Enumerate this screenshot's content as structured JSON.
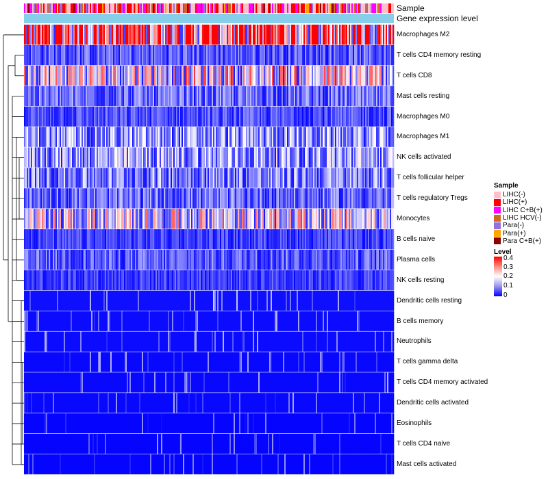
{
  "chart_data": {
    "type": "heatmap",
    "title": "",
    "annotation_tracks": [
      "Sample",
      "Gene expression level"
    ],
    "rows": [
      "Macrophages M2",
      "T cells CD4 memory resting",
      "T cells CD8",
      "Mast cells resting",
      "Macrophages M0",
      "Macrophages M1",
      "NK cells activated",
      "T cells follicular helper",
      "T cells regulatory  Tregs",
      "Monocytes",
      "B cells naive",
      "Plasma cells",
      "NK cells resting",
      "Dendritic cells resting",
      "B cells memory",
      "Neutrophils",
      "T cells gamma delta",
      "T cells CD4 memory activated",
      "Dendritic cells activated",
      "Eosinophils",
      "T cells CD4 naive",
      "Mast cells activated"
    ],
    "row_mean_level": [
      0.34,
      0.07,
      0.19,
      0.08,
      0.06,
      0.11,
      0.12,
      0.1,
      0.08,
      0.17,
      0.05,
      0.07,
      0.05,
      0.04,
      0.03,
      0.03,
      0.02,
      0.02,
      0.02,
      0.01,
      0.01,
      0.01
    ],
    "n_samples": 270,
    "legend_sample": {
      "title": "Sample",
      "items": [
        {
          "label": "LIHC(-)",
          "color": "#ffc0cb"
        },
        {
          "label": "LIHC(+)",
          "color": "#ff0000"
        },
        {
          "label": "LIHC C+B(+)",
          "color": "#ff00ff"
        },
        {
          "label": "LIHC HCV(-)",
          "color": "#d2691e"
        },
        {
          "label": "Para(-)",
          "color": "#9370db"
        },
        {
          "label": "Para(+)",
          "color": "#ffa500"
        },
        {
          "label": "Para C+B(+)",
          "color": "#8b0000"
        }
      ]
    },
    "legend_level": {
      "title": "Level",
      "ticks": [
        "0.4",
        "0.3",
        "0.2",
        "0.1",
        "0"
      ],
      "range": [
        0,
        0.4
      ],
      "colors": [
        "#0000ff",
        "#ffffff",
        "#ff0000"
      ]
    },
    "expression_track_color": "#87ceeb"
  }
}
